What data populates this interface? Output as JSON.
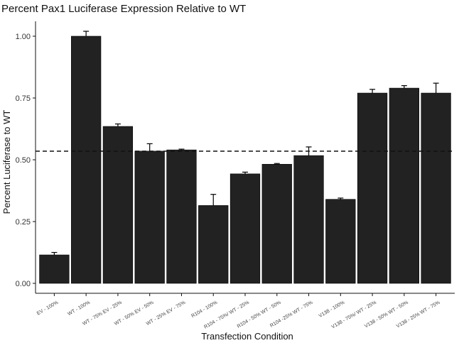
{
  "chart_data": {
    "type": "bar",
    "title": "Percent Pax1 Luciferase Expression Relative to WT",
    "xlabel": "Transfection Condition",
    "ylabel": "Percent Luciferase to WT",
    "ylim": [
      0,
      1.05
    ],
    "yticks": [
      "0.00",
      "0.25",
      "0.50",
      "0.75",
      "1.00"
    ],
    "categories": [
      "EV - 100%",
      "WT - 100%",
      "WT - 75% EV - 25%",
      "WT - 50% EV - 50%",
      "WT - 25% EV - 75%",
      "R104 - 100%",
      "R104 - 75%/ WT - 25%",
      "R104 - 50% WT - 50%",
      "R104 -25% WT - 75%",
      "V138 - 100%",
      "V138 - 75%/ WT - 25%",
      "V138 - 50% WT - 50%",
      "V138 - 25% WT - 75%"
    ],
    "values": [
      0.115,
      1.0,
      0.635,
      0.535,
      0.54,
      0.315,
      0.443,
      0.482,
      0.517,
      0.34,
      0.77,
      0.79,
      0.77
    ],
    "errors": [
      0.01,
      0.02,
      0.01,
      0.03,
      0.003,
      0.045,
      0.007,
      0.003,
      0.035,
      0.005,
      0.015,
      0.01,
      0.04
    ],
    "reference_line": 0.535,
    "grid": false,
    "legend": "none",
    "bar_color": "#222222"
  }
}
